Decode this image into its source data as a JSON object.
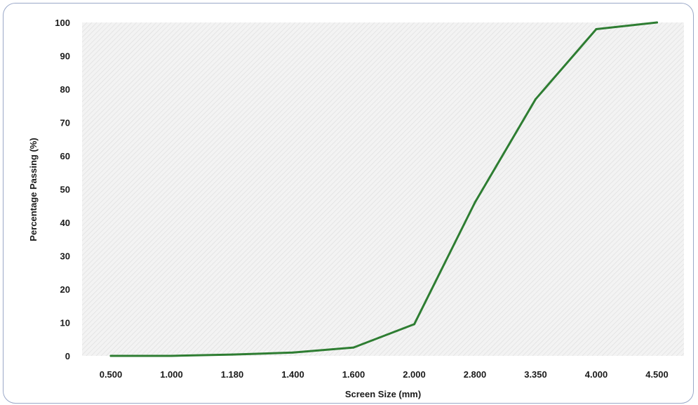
{
  "chart_data": {
    "type": "line",
    "title": "",
    "xlabel": "Screen Size (mm)",
    "ylabel": "Percentage Passing (%)",
    "categories": [
      "0.500",
      "1.000",
      "1.180",
      "1.400",
      "1.600",
      "2.000",
      "2.800",
      "3.350",
      "4.000",
      "4.500"
    ],
    "series": [
      {
        "values": [
          0,
          0,
          0.4,
          1,
          2.5,
          9.5,
          46,
          77,
          98,
          100
        ],
        "color": "#2e7d32"
      }
    ],
    "ylim": [
      0,
      100
    ],
    "yticks": [
      0,
      10,
      20,
      30,
      40,
      50,
      60,
      70,
      80,
      90,
      100
    ],
    "ytick_labels": [
      "0",
      "10",
      "20",
      "30",
      "40",
      "50",
      "60",
      "70",
      "80",
      "90",
      "100"
    ],
    "grid": true,
    "legend": "none"
  }
}
